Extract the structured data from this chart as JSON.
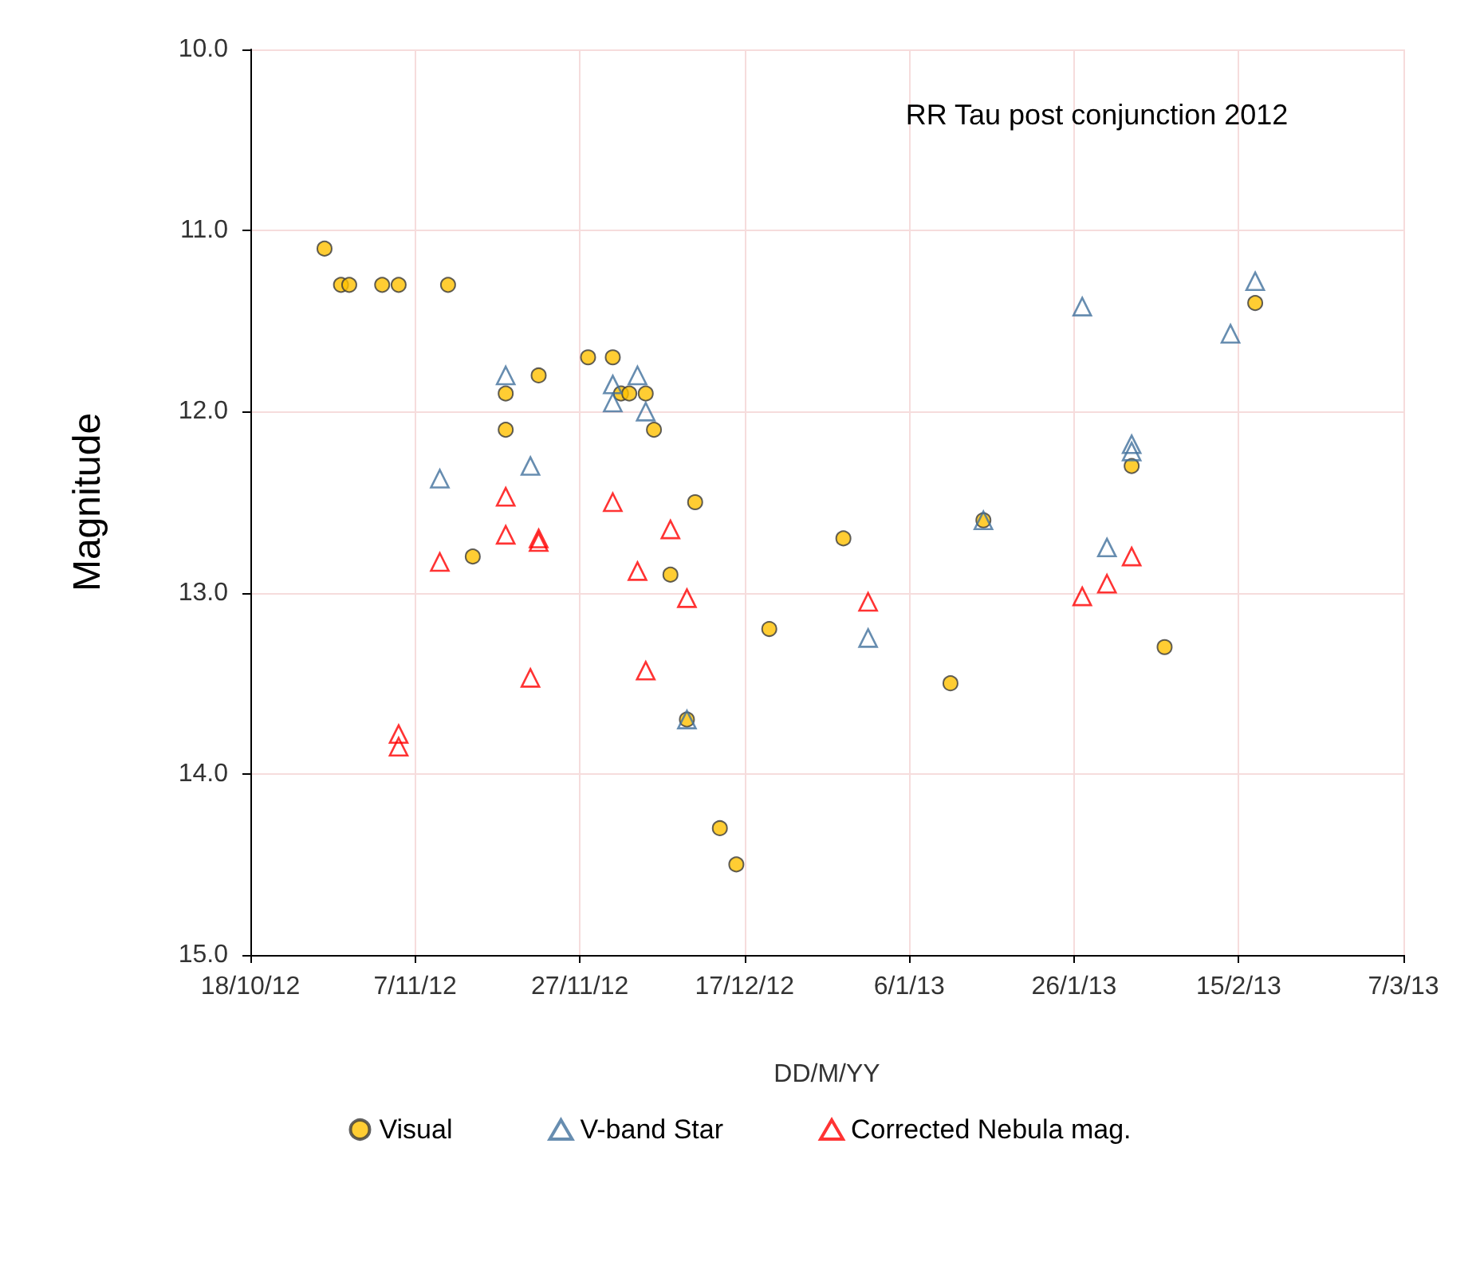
{
  "chart_data": {
    "type": "scatter",
    "title": "RR Tau post conjunction 2012",
    "xlabel": "DD/M/YY",
    "ylabel": "Magnitude",
    "xlim": [
      "2012-10-18",
      "2013-03-07"
    ],
    "xticks": [
      {
        "value": "2012-10-18",
        "label": "18/10/12"
      },
      {
        "value": "2012-11-07",
        "label": "7/11/12"
      },
      {
        "value": "2012-11-27",
        "label": "27/11/12"
      },
      {
        "value": "2012-12-17",
        "label": "17/12/12"
      },
      {
        "value": "2013-01-06",
        "label": "6/1/13"
      },
      {
        "value": "2013-01-26",
        "label": "26/1/13"
      },
      {
        "value": "2013-02-15",
        "label": "15/2/13"
      },
      {
        "value": "2013-03-07",
        "label": "7/3/13"
      }
    ],
    "ylim": [
      15,
      10
    ],
    "yticks": [
      {
        "value": 10,
        "label": "10.0"
      },
      {
        "value": 11,
        "label": "11.0"
      },
      {
        "value": 12,
        "label": "12.0"
      },
      {
        "value": 13,
        "label": "13.0"
      },
      {
        "value": 14,
        "label": "14.0"
      },
      {
        "value": 15,
        "label": "15.0"
      }
    ],
    "grid": true,
    "legend": "bottom",
    "series": [
      {
        "name": "Visual",
        "color": "#ffc000",
        "marker": "circle",
        "x": [
          "2012-10-27",
          "2012-10-29",
          "2012-10-30",
          "2012-11-03",
          "2012-11-05",
          "2012-11-11",
          "2012-11-14",
          "2012-11-18",
          "2012-11-18",
          "2012-11-22",
          "2012-11-28",
          "2012-12-01",
          "2012-12-02",
          "2012-12-03",
          "2012-12-05",
          "2012-12-06",
          "2012-12-08",
          "2012-12-10",
          "2012-12-11",
          "2012-12-14",
          "2012-12-16",
          "2012-12-20",
          "2012-12-29",
          "2013-01-11",
          "2013-01-15",
          "2013-02-02",
          "2013-02-06",
          "2013-02-17"
        ],
        "values": [
          11.1,
          11.3,
          11.3,
          11.3,
          11.3,
          11.3,
          12.8,
          11.9,
          12.1,
          11.8,
          11.7,
          11.7,
          11.9,
          11.9,
          11.9,
          12.1,
          12.9,
          13.7,
          12.5,
          14.3,
          14.5,
          13.2,
          12.7,
          13.5,
          12.6,
          12.3,
          13.3,
          11.4
        ]
      },
      {
        "name": "V-band Star",
        "color": "#41719c",
        "marker": "triangle",
        "x": [
          "2012-11-10",
          "2012-11-18",
          "2012-11-21",
          "2012-12-01",
          "2012-12-01",
          "2012-12-04",
          "2012-12-05",
          "2012-12-10",
          "2013-01-01",
          "2013-01-15",
          "2013-01-27",
          "2013-01-30",
          "2013-02-02",
          "2013-02-02",
          "2013-02-14",
          "2013-02-17"
        ],
        "values": [
          12.37,
          11.8,
          12.3,
          11.85,
          11.95,
          11.8,
          12.0,
          13.7,
          13.25,
          12.6,
          11.42,
          12.75,
          12.18,
          12.22,
          11.57,
          11.28
        ]
      },
      {
        "name": "Corrected Nebula mag.",
        "color": "#ff0000",
        "marker": "triangle",
        "x": [
          "2012-11-05",
          "2012-11-05",
          "2012-11-10",
          "2012-11-18",
          "2012-11-18",
          "2012-11-21",
          "2012-11-22",
          "2012-11-22",
          "2012-12-01",
          "2012-12-04",
          "2012-12-05",
          "2012-12-08",
          "2012-12-10",
          "2013-01-01",
          "2013-01-27",
          "2013-01-30",
          "2013-02-02"
        ],
        "values": [
          13.78,
          13.85,
          12.83,
          12.47,
          12.68,
          13.47,
          12.7,
          12.72,
          12.5,
          12.88,
          13.43,
          12.65,
          13.03,
          13.05,
          13.02,
          12.95,
          12.8
        ]
      }
    ]
  }
}
